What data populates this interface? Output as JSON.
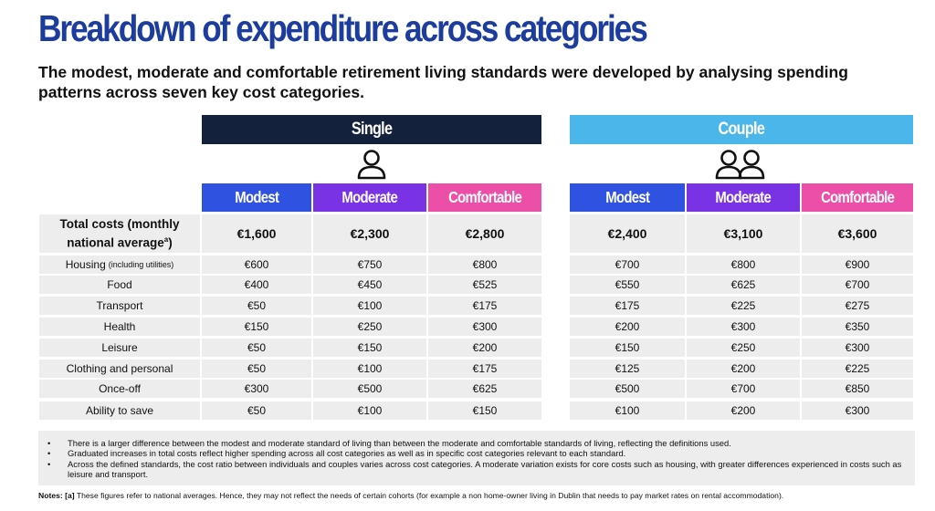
{
  "title": "Breakdown of expenditure across categories",
  "subtitle": "The modest, moderate and comfortable retirement living standards were developed by analysing spending patterns across seven key cost categories.",
  "groups": {
    "single": "Single",
    "couple": "Couple"
  },
  "columns": [
    "Modest",
    "Moderate",
    "Comfortable",
    "Modest",
    "Moderate",
    "Comfortable"
  ],
  "total_row": {
    "label": "Total costs (monthly national average",
    "superscript": "a",
    "label_suffix": ")",
    "values": [
      "€1,600",
      "€2,300",
      "€2,800",
      "€2,400",
      "€3,100",
      "€3,600"
    ]
  },
  "rows": [
    {
      "label": "Housing",
      "sublabel": "(including utilities)",
      "values": [
        "€600",
        "€750",
        "€800",
        "€700",
        "€800",
        "€900"
      ]
    },
    {
      "label": "Food",
      "sublabel": "",
      "values": [
        "€400",
        "€450",
        "€525",
        "€550",
        "€625",
        "€700"
      ]
    },
    {
      "label": "Transport",
      "sublabel": "",
      "values": [
        "€50",
        "€100",
        "€175",
        "€175",
        "€225",
        "€275"
      ]
    },
    {
      "label": "Health",
      "sublabel": "",
      "values": [
        "€150",
        "€250",
        "€300",
        "€200",
        "€300",
        "€350"
      ]
    },
    {
      "label": "Leisure",
      "sublabel": "",
      "values": [
        "€50",
        "€150",
        "€200",
        "€150",
        "€250",
        "€300"
      ]
    },
    {
      "label": "Clothing and personal",
      "sublabel": "",
      "values": [
        "€50",
        "€100",
        "€175",
        "€125",
        "€200",
        "€225"
      ]
    },
    {
      "label": "Once-off",
      "sublabel": "",
      "values": [
        "€300",
        "€500",
        "€625",
        "€500",
        "€700",
        "€850"
      ]
    },
    {
      "label": "Ability to save",
      "sublabel": "",
      "values": [
        "€50",
        "€100",
        "€150",
        "€100",
        "€200",
        "€300"
      ]
    }
  ],
  "notes": [
    "There is a larger difference between the modest and moderate standard of living than between the moderate and comfortable standards of living, reflecting the definitions used.",
    "Graduated increases in total costs reflect higher spending across all cost categories as well as in specific cost categories relevant to each standard.",
    "Across the defined standards, the cost ratio between individuals and couples varies across cost categories. A moderate variation exists for core costs such as housing, with greater differences experienced in costs such as leisure and transport."
  ],
  "footnote": {
    "lead": "Notes: [a]",
    "text": " These figures refer to national averages. Hence, they may not reflect the needs of certain cohorts (for example a non home-owner living in Dublin that needs to pay market rates on rental accommodation)."
  },
  "icons": {
    "single": "person-icon",
    "couple": "two-people-icon"
  },
  "colors": {
    "title": "#1d3d9e",
    "single_header": "#14213d",
    "couple_header": "#4ab6ea",
    "modest": "#2f52e0",
    "moderate": "#7a33e4",
    "comfortable": "#ec4fa8",
    "cell_bg": "#ededed"
  }
}
